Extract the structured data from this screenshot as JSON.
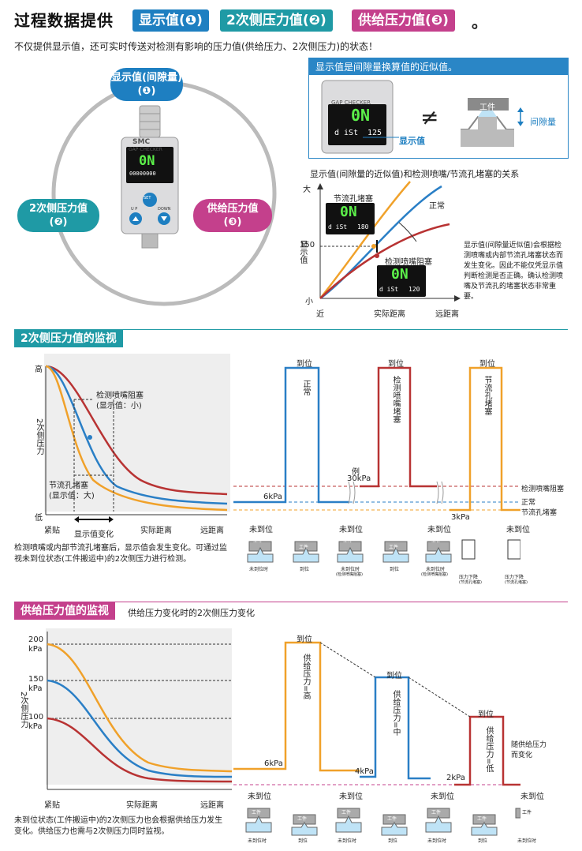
{
  "header": {
    "title": "过程数据提供",
    "tag1": "显示值(❶)",
    "tag2": "2次侧压力值(❷)",
    "tag3": "供给压力值(❸)",
    "end": "。",
    "intro": "不仅提供显示值，还可实时传送对检测有影响的压力值(供给压力、2次侧压力)的状态！"
  },
  "device": {
    "pill_top_l1": "显示值(间隙量)",
    "pill_top_l2": "(❶)",
    "pill_left_l1": "2次侧压力值",
    "pill_left_l2": "(❷)",
    "pill_right_l1": "供给压力值",
    "pill_right_l2": "(❸)",
    "brand": "SMC",
    "model": "GAP CHECKER",
    "lcd_main": "0N",
    "lcd_sub": "00000000",
    "btn_set": "SET",
    "btn_up": "U P",
    "btn_down": "DOWN"
  },
  "approx_box": {
    "heading": "显示值是间隙量换算值的近似值。",
    "model": "GAP CHECKER",
    "lcd_main": "0N",
    "lcd_sub_left": "d iSt",
    "lcd_sub_right": "125",
    "display_label": "显示值",
    "neq": "≠",
    "workpiece": "工件",
    "gap_label": "间隙量"
  },
  "relation_chart": {
    "title": "显示值(间隙量的近似值)和检测喷嘴/节流孔堵塞的关系",
    "y_axis": "显示值",
    "y_top": "大",
    "y_150": "150",
    "y_bottom": "小",
    "x_left": "近",
    "x_mid": "实际距离",
    "x_right": "远距离",
    "label_orifice": "节流孔堵塞",
    "label_normal": "正常",
    "label_nozzle": "检测喷嘴阻塞",
    "lcd1_main": "0N",
    "lcd1_sub": "d iSt",
    "lcd1_val": "180",
    "lcd2_main": "0N",
    "lcd2_sub": "d iSt",
    "lcd2_val": "120",
    "note": "显示值(间隙量近似值)会根据检测喷嘴或内部节流孔堵塞状态而发生变化。因此不能仅凭显示值判断检测是否正确。确认检测喷嘴及节流孔的堵塞状态非常重要。"
  },
  "section2": {
    "heading": "2次侧压力值的监视",
    "y_axis": "2次侧压力",
    "y_high": "高",
    "y_low": "低",
    "x_left": "紧贴",
    "x_mid": "实际距离",
    "x_right": "远距离",
    "x_change": "显示值变化",
    "ann_nozzle_l1": "检测喷嘴阻塞",
    "ann_nozzle_l2": "(显示值：小)",
    "ann_orifice_l1": "节流孔堵塞",
    "ann_orifice_l2": "(显示值：大)",
    "arrive": "到位",
    "not_arrive": "未到位",
    "v_normal": "正常",
    "v_nozzle": "检测喷嘴堵塞",
    "v_orifice": "节流孔堵塞",
    "p_6": "6kPa",
    "p_30_l1": "例",
    "p_30_l2": "30kPa",
    "p_3": "3kPa",
    "legend_nozzle": "检测喷嘴阻塞",
    "legend_normal": "正常",
    "legend_orifice": "节流孔堵塞",
    "w_label": "工件",
    "cap_not": "未到位时",
    "cap_arrive": "到位",
    "cap_not_nozzle_l1": "未到位时",
    "cap_not_nozzle_l2": "(检测喷嘴阻塞)",
    "cap_drop_l1": "压力下降",
    "cap_drop_l2": "(节流孔堵塞)",
    "note": "检测喷嘴或内部节流孔堵塞后，显示值会发生变化。可通过监视未到位状态(工件搬运中)的2次侧压力进行检测。"
  },
  "section3": {
    "heading": "供给压力值的监视",
    "subheading": "供给压力变化时的2次侧压力变化",
    "y_axis": "2次侧压力",
    "y_200": "200",
    "y_150": "150",
    "y_100": "100",
    "unit": "kPa",
    "x_left": "紧贴",
    "x_mid": "实际距离",
    "x_right": "远距离",
    "arrive": "到位",
    "not_arrive": "未到位",
    "v_high": "供给压力=高",
    "v_mid": "供给压力=中",
    "v_low": "供给压力=低",
    "p_6": "6kPa",
    "p_4": "4kPa",
    "p_2": "2kPa",
    "change_l1": "随供给压力",
    "change_l2": "而变化",
    "w_label": "工件",
    "cap_not": "未到位时",
    "cap_arrive": "到位",
    "note": "未到位状态(工件搬运中)的2次侧压力也会根据供给压力发生变化。供给压力也需与2次侧压力同时监视。"
  },
  "colors": {
    "blue": "#1e7fc1",
    "teal": "#1f9aa5",
    "magenta": "#c4408c",
    "orange": "#f0a12a",
    "red": "#b83333",
    "curve_blue": "#2a7fc6"
  }
}
